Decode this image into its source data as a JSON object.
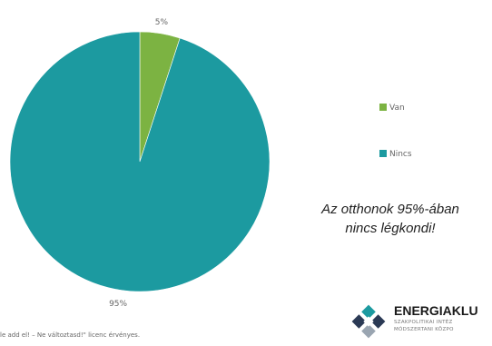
{
  "chart_data": {
    "type": "pie",
    "title": "",
    "slices": [
      {
        "name": "Van",
        "value": 5,
        "label": "5%",
        "color": "#7cb342"
      },
      {
        "name": "Nincs",
        "value": 95,
        "label": "95%",
        "color": "#1c9aa0"
      }
    ],
    "legend": {
      "placement": "right",
      "entries": [
        "Van",
        "Nincs"
      ]
    }
  },
  "callout": {
    "line1": "Az otthonok 95%-ában",
    "line2": "nincs légkondi!"
  },
  "footer": {
    "license_text": "le add el! – Ne változtasd!\" licenc érvényes."
  },
  "brand": {
    "name": "ENERGIAKLU",
    "sub1": "SZAKPOLITIKAI INTÉZ",
    "sub2": "MÓDSZERTANI KÖZPO",
    "colors": [
      "#1c9aa0",
      "#2b3a55",
      "#9aa5b1"
    ]
  }
}
